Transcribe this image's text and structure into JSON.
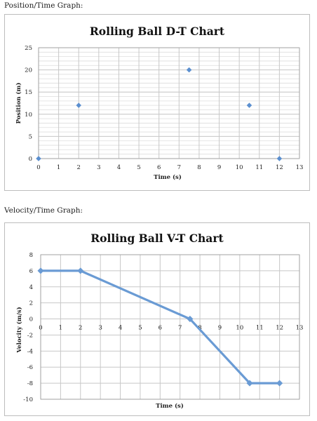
{
  "captions": {
    "position_time": "Position/Time Graph:",
    "velocity_time": "Velocity/Time Graph:"
  },
  "chart_data": [
    {
      "type": "scatter",
      "title": "Rolling Ball D-T Chart",
      "xlabel": "Time (s)",
      "ylabel": "Position (m)",
      "xlim": [
        0,
        13
      ],
      "ylim": [
        0,
        25
      ],
      "x_ticks": [
        "0",
        "1",
        "2",
        "3",
        "4",
        "5",
        "6",
        "7",
        "8",
        "9",
        "10",
        "11",
        "12",
        "13"
      ],
      "y_ticks": [
        "0",
        "5",
        "10",
        "15",
        "20",
        "25"
      ],
      "grid": true,
      "color": "#5b8fcf",
      "marker": "diamond",
      "series": [
        {
          "x": [
            0,
            2,
            7.5,
            10.5,
            12
          ],
          "y": [
            0,
            12,
            20,
            12,
            0
          ]
        }
      ]
    },
    {
      "type": "line",
      "title": "Rolling Ball V-T Chart",
      "xlabel": "Time (s)",
      "ylabel": "Velocity (m/s)",
      "xlim": [
        0,
        13
      ],
      "ylim": [
        -10,
        8
      ],
      "x_ticks": [
        "0",
        "1",
        "2",
        "3",
        "4",
        "5",
        "6",
        "7",
        "8",
        "9",
        "10",
        "11",
        "12",
        "13"
      ],
      "y_ticks": [
        "-10",
        "-8",
        "-6",
        "-4",
        "-2",
        "0",
        "2",
        "4",
        "6",
        "8"
      ],
      "grid": true,
      "color": "#6a9bd4",
      "marker": "diamond",
      "series": [
        {
          "x": [
            0,
            2,
            7.5,
            10.5,
            12
          ],
          "y": [
            6,
            6,
            0,
            -8,
            -8
          ]
        }
      ]
    }
  ]
}
